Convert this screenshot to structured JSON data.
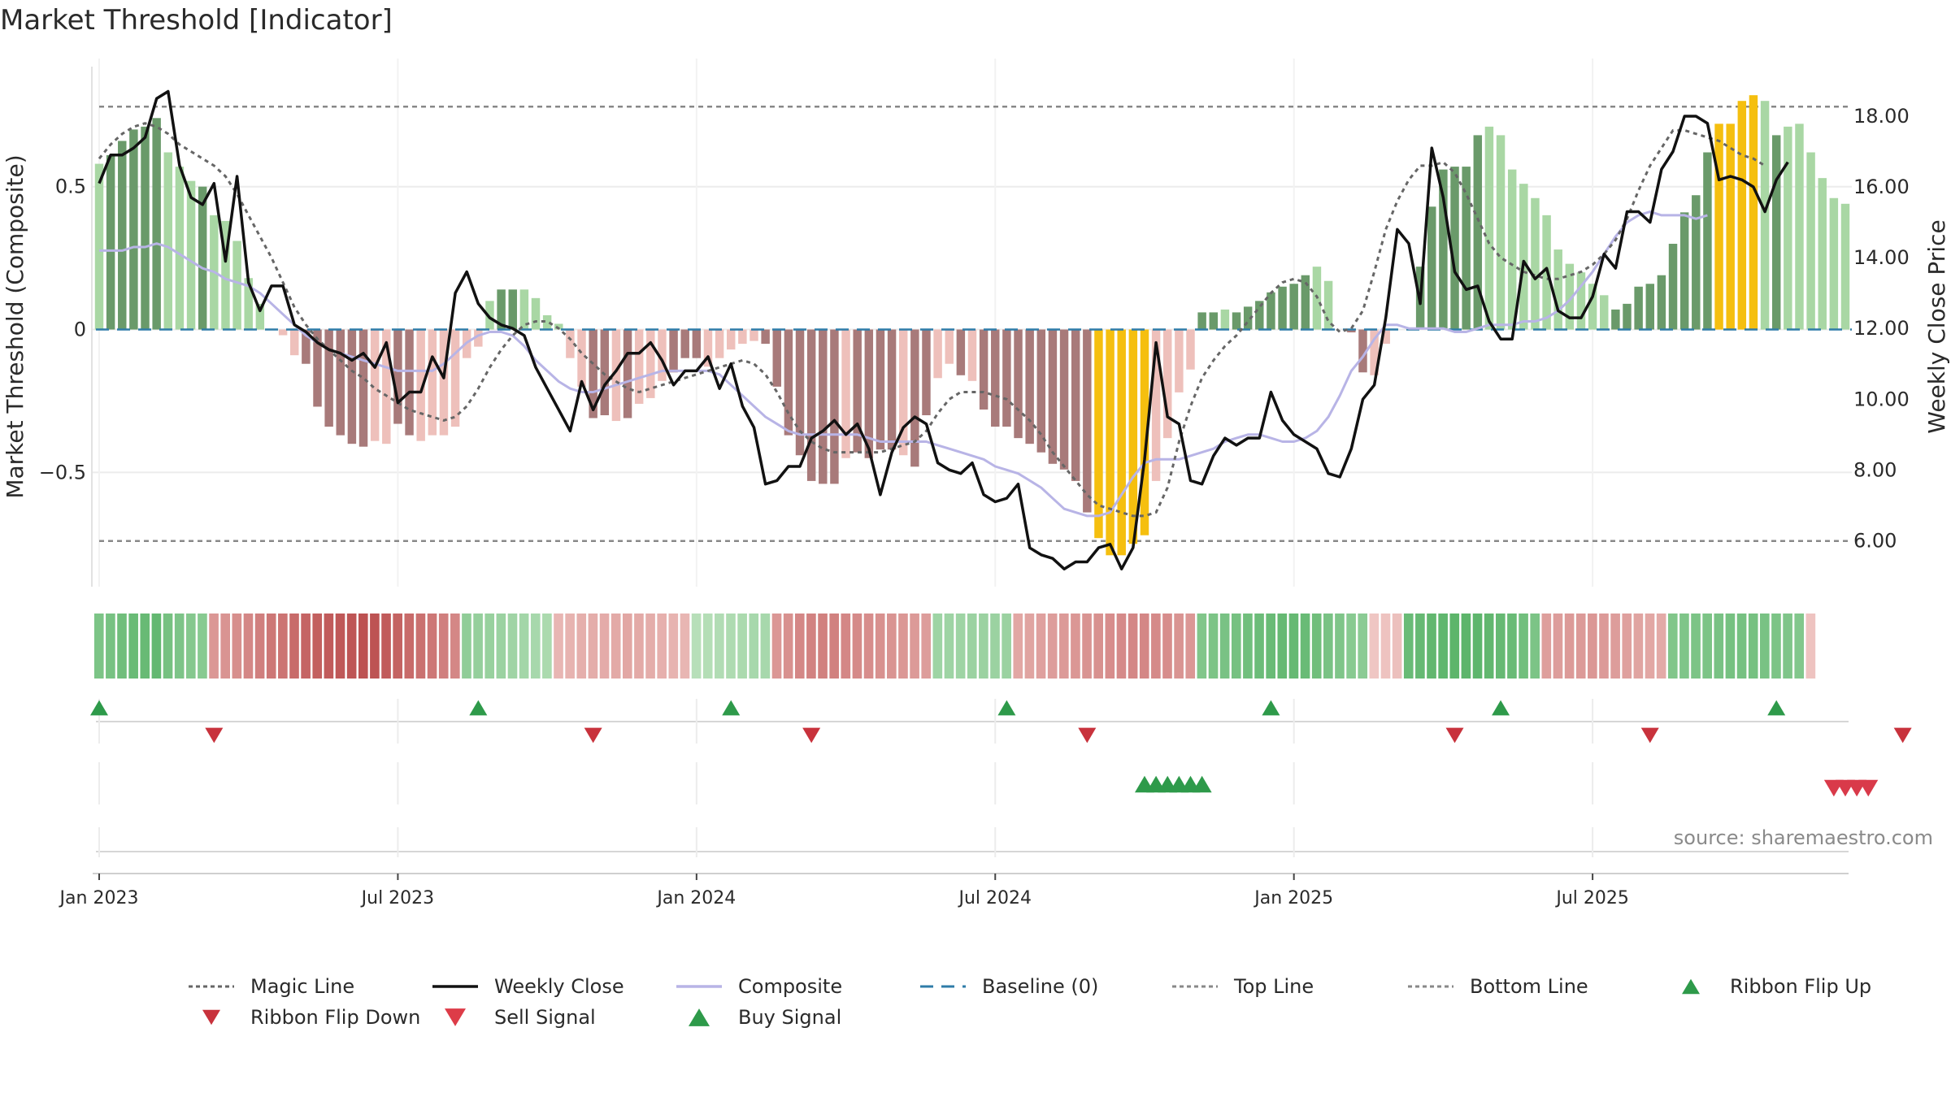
{
  "chart_data": {
    "title": "Market Threshold [Indicator]",
    "source": "source: sharemaestro.com",
    "type": "bar",
    "left_axis": {
      "label": "Market Threshold (Composite)",
      "range": [
        -0.9,
        0.92
      ],
      "ticks": [
        {
          "v": 0.5,
          "label": "0.5"
        },
        {
          "v": 0,
          "label": "0"
        },
        {
          "v": -0.5,
          "label": "−0.5"
        }
      ]
    },
    "right_axis": {
      "label": "Weekly Close Price",
      "range": [
        4.7,
        19.4
      ],
      "ticks": [
        {
          "v": 18,
          "label": "18.00"
        },
        {
          "v": 16,
          "label": "16.00"
        },
        {
          "v": 14,
          "label": "14.00"
        },
        {
          "v": 12,
          "label": "12.00"
        },
        {
          "v": 10,
          "label": "10.00"
        },
        {
          "v": 8,
          "label": "8.00"
        },
        {
          "v": 6,
          "label": "6.00"
        }
      ]
    },
    "x_axis": {
      "ticks": [
        "Jan 2023",
        "Jul 2023",
        "Jan 2024",
        "Jul 2024",
        "Jan 2025",
        "Jul 2025"
      ],
      "tick_weeks": [
        1,
        27,
        53,
        79,
        105,
        131
      ]
    },
    "top_line": 0.78,
    "bottom_line": -0.74,
    "grid": true,
    "legend_placement": "bottom",
    "colors": {
      "strong_pos": "#6a9a6a",
      "weak_pos": "#a9d7a4",
      "strong_neg": "#a87a7a",
      "weak_neg": "#eec0bb",
      "extreme": "#f5bf0f",
      "close": "#111111",
      "magic": "#666666",
      "composite": "#b8b4e6",
      "baseline": "#2f7ca8",
      "refline": "#888888",
      "buy": "#2e9a4a",
      "sell": "#d93a4a"
    },
    "composite_bars": [
      0.58,
      0.61,
      0.66,
      0.7,
      0.71,
      0.74,
      0.62,
      0.57,
      0.52,
      0.5,
      0.4,
      0.38,
      0.31,
      0.18,
      0.09,
      0.0,
      -0.02,
      -0.09,
      -0.12,
      -0.27,
      -0.34,
      -0.37,
      -0.4,
      -0.41,
      -0.39,
      -0.4,
      -0.33,
      -0.37,
      -0.39,
      -0.37,
      -0.37,
      -0.34,
      -0.1,
      -0.06,
      0.1,
      0.14,
      0.14,
      0.14,
      0.11,
      0.05,
      0.02,
      -0.1,
      -0.2,
      -0.31,
      -0.3,
      -0.32,
      -0.31,
      -0.26,
      -0.24,
      -0.18,
      -0.15,
      -0.1,
      -0.1,
      -0.13,
      -0.1,
      -0.07,
      -0.05,
      -0.04,
      -0.05,
      -0.2,
      -0.37,
      -0.44,
      -0.53,
      -0.54,
      -0.54,
      -0.45,
      -0.43,
      -0.45,
      -0.42,
      -0.42,
      -0.44,
      -0.48,
      -0.3,
      -0.17,
      -0.12,
      -0.16,
      -0.18,
      -0.28,
      -0.34,
      -0.34,
      -0.38,
      -0.4,
      -0.43,
      -0.47,
      -0.49,
      -0.53,
      -0.64,
      -0.73,
      -0.79,
      -0.79,
      -0.75,
      -0.72,
      -0.53,
      -0.38,
      -0.22,
      -0.14,
      0.06,
      0.06,
      0.07,
      0.06,
      0.08,
      0.1,
      0.13,
      0.15,
      0.16,
      0.19,
      0.22,
      0.17,
      0.0,
      -0.01,
      -0.15,
      -0.16,
      -0.05,
      0.0,
      0.0,
      0.22,
      0.43,
      0.56,
      0.57,
      0.57,
      0.68,
      0.71,
      0.68,
      0.56,
      0.51,
      0.46,
      0.4,
      0.28,
      0.23,
      0.2,
      0.16,
      0.12,
      0.07,
      0.09,
      0.15,
      0.16,
      0.19,
      0.3,
      0.41,
      0.47,
      0.62,
      0.72,
      0.72,
      0.8,
      0.82,
      0.8,
      0.68,
      0.71,
      0.72,
      0.62,
      0.53,
      0.46,
      0.44
    ],
    "bar_classes": [
      "W",
      "S",
      "S",
      "S",
      "S",
      "S",
      "W",
      "W",
      "W",
      "S",
      "W",
      "W",
      "W",
      "W",
      "W",
      "N",
      "N",
      "W",
      "S",
      "S",
      "S",
      "S",
      "S",
      "S",
      "W",
      "W",
      "S",
      "S",
      "W",
      "W",
      "W",
      "W",
      "W",
      "W",
      "W",
      "S",
      "S",
      "W",
      "W",
      "W",
      "W",
      "W",
      "W",
      "S",
      "S",
      "W",
      "S",
      "W",
      "W",
      "W",
      "S",
      "S",
      "S",
      "W",
      "W",
      "W",
      "W",
      "W",
      "S",
      "S",
      "S",
      "S",
      "S",
      "S",
      "S",
      "W",
      "S",
      "S",
      "S",
      "S",
      "W",
      "S",
      "S",
      "W",
      "W",
      "S",
      "W",
      "S",
      "S",
      "S",
      "S",
      "S",
      "S",
      "S",
      "S",
      "S",
      "S",
      "X",
      "X",
      "X",
      "X",
      "X",
      "W",
      "W",
      "W",
      "W",
      "S",
      "S",
      "W",
      "S",
      "S",
      "S",
      "S",
      "S",
      "S",
      "S",
      "W",
      "N",
      "W",
      "S",
      "S",
      "W",
      "N",
      "N",
      "W",
      "S",
      "S",
      "S",
      "S",
      "S",
      "S",
      "W",
      "W",
      "W",
      "W",
      "W",
      "W",
      "W",
      "W",
      "W",
      "W",
      "W",
      "S",
      "S",
      "S",
      "S",
      "S",
      "S",
      "S",
      "S",
      "S",
      "X",
      "X",
      "X",
      "X",
      "W",
      "S",
      "W",
      "W",
      "W",
      "W"
    ],
    "weekly_close": [
      16.1,
      16.9,
      16.9,
      17.1,
      17.4,
      18.5,
      18.7,
      16.6,
      15.7,
      15.5,
      16.1,
      13.9,
      16.3,
      13.3,
      12.5,
      13.2,
      13.2,
      12.1,
      11.9,
      11.6,
      11.4,
      11.3,
      11.1,
      11.3,
      10.9,
      11.6,
      9.9,
      10.2,
      10.2,
      11.2,
      10.6,
      13.0,
      13.6,
      12.7,
      12.3,
      12.1,
      12.0,
      11.8,
      10.9,
      10.3,
      9.7,
      9.1,
      10.5,
      9.7,
      10.4,
      10.8,
      11.3,
      11.3,
      11.6,
      11.1,
      10.4,
      10.8,
      10.8,
      11.2,
      10.3,
      11.0,
      9.8,
      9.2,
      7.6,
      7.7,
      8.1,
      8.1,
      8.9,
      9.1,
      9.4,
      9.0,
      9.3,
      8.6,
      7.3,
      8.5,
      9.2,
      9.5,
      9.3,
      8.2,
      8.0,
      7.9,
      8.2,
      7.3,
      7.1,
      7.2,
      7.6,
      5.8,
      5.6,
      5.5,
      5.2,
      5.4,
      5.4,
      5.8,
      5.9,
      5.2,
      5.8,
      8.3,
      11.6,
      9.5,
      9.3,
      7.7,
      7.6,
      8.4,
      8.9,
      8.7,
      8.9,
      8.9,
      10.2,
      9.4,
      9.0,
      8.8,
      8.6,
      7.9,
      7.8,
      8.6,
      10.0,
      10.4,
      12.3,
      14.8,
      14.4,
      12.7,
      17.1,
      15.7,
      13.6,
      13.1,
      13.2,
      12.2,
      11.7,
      11.7,
      13.9,
      13.4,
      13.7,
      12.5,
      12.3,
      12.3,
      12.9,
      14.1,
      13.7,
      15.3,
      15.3,
      15.0,
      16.5,
      17.0,
      18.0,
      18.0,
      17.8,
      16.2,
      16.3,
      16.2,
      16.0,
      15.3,
      16.2,
      16.7
    ],
    "magic_line": [
      16.8,
      17.2,
      17.5,
      17.7,
      17.8,
      17.7,
      17.5,
      17.2,
      17.0,
      16.8,
      16.6,
      16.3,
      15.8,
      15.2,
      14.6,
      14.0,
      13.3,
      12.6,
      12.1,
      11.7,
      11.4,
      11.1,
      10.8,
      10.6,
      10.3,
      10.1,
      9.9,
      9.7,
      9.6,
      9.5,
      9.4,
      9.5,
      9.8,
      10.3,
      10.9,
      11.4,
      11.8,
      12.1,
      12.2,
      12.2,
      12.0,
      11.7,
      11.3,
      11.0,
      10.7,
      10.5,
      10.3,
      10.2,
      10.3,
      10.4,
      10.5,
      10.6,
      10.7,
      10.8,
      10.9,
      11.0,
      11.1,
      11.0,
      10.7,
      10.2,
      9.6,
      9.1,
      8.8,
      8.6,
      8.5,
      8.5,
      8.5,
      8.5,
      8.5,
      8.6,
      8.7,
      8.8,
      9.1,
      9.6,
      10.0,
      10.2,
      10.2,
      10.2,
      10.1,
      10.0,
      9.7,
      9.4,
      9.0,
      8.5,
      8.1,
      7.7,
      7.3,
      7.0,
      6.9,
      6.8,
      6.7,
      6.7,
      6.8,
      7.5,
      8.8,
      9.8,
      10.6,
      11.1,
      11.5,
      11.8,
      12.2,
      12.6,
      13.0,
      13.3,
      13.4,
      13.3,
      12.9,
      12.2,
      11.9,
      12.0,
      12.5,
      13.6,
      14.8,
      15.6,
      16.2,
      16.6,
      16.6,
      16.7,
      16.4,
      15.8,
      15.1,
      14.4,
      14.0,
      13.8,
      13.6,
      13.5,
      13.4,
      13.4,
      13.5,
      13.6,
      13.8,
      14.1,
      14.5,
      15.1,
      15.9,
      16.6,
      17.1,
      17.6,
      17.6,
      17.5,
      17.4,
      17.3,
      17.1,
      16.9,
      16.8,
      16.6
    ],
    "composite_line": [
      14.2,
      14.2,
      14.2,
      14.3,
      14.3,
      14.4,
      14.3,
      14.1,
      13.9,
      13.7,
      13.6,
      13.4,
      13.3,
      13.2,
      13.0,
      12.7,
      12.4,
      12.1,
      11.8,
      11.6,
      11.4,
      11.3,
      11.2,
      11.1,
      11.0,
      10.9,
      10.8,
      10.8,
      10.8,
      10.8,
      11.0,
      11.3,
      11.6,
      11.8,
      11.9,
      11.9,
      11.8,
      11.5,
      11.1,
      10.8,
      10.5,
      10.3,
      10.2,
      10.2,
      10.3,
      10.4,
      10.5,
      10.6,
      10.7,
      10.8,
      10.8,
      10.8,
      10.8,
      10.8,
      10.7,
      10.4,
      10.1,
      9.8,
      9.5,
      9.3,
      9.1,
      9.0,
      9.0,
      9.0,
      9.0,
      9.0,
      9.0,
      8.9,
      8.8,
      8.8,
      8.8,
      8.8,
      8.8,
      8.7,
      8.6,
      8.5,
      8.4,
      8.3,
      8.1,
      8.0,
      7.9,
      7.7,
      7.5,
      7.2,
      6.9,
      6.8,
      6.7,
      6.7,
      6.8,
      7.3,
      7.8,
      8.2,
      8.3,
      8.3,
      8.3,
      8.4,
      8.5,
      8.6,
      8.8,
      8.9,
      9.0,
      9.0,
      8.9,
      8.8,
      8.8,
      8.9,
      9.1,
      9.5,
      10.1,
      10.8,
      11.2,
      11.7,
      12.1,
      12.1,
      12.0,
      12.0,
      12.0,
      12.0,
      11.9,
      11.9,
      12.0,
      12.1,
      12.1,
      12.1,
      12.2,
      12.2,
      12.3,
      12.5,
      12.8,
      13.2,
      13.6,
      14.1,
      14.6,
      15.0,
      15.2,
      15.3,
      15.2,
      15.2,
      15.2,
      15.1,
      15.2
    ],
    "ribbon_values": [
      0.58,
      0.61,
      0.66,
      0.7,
      0.71,
      0.74,
      0.62,
      0.57,
      0.52,
      0.5,
      -0.4,
      -0.42,
      -0.45,
      -0.5,
      -0.55,
      -0.6,
      -0.62,
      -0.68,
      -0.72,
      -0.75,
      -0.78,
      -0.8,
      -0.82,
      -0.84,
      -0.83,
      -0.78,
      -0.73,
      -0.68,
      -0.64,
      -0.6,
      -0.55,
      -0.5,
      0.45,
      0.42,
      0.4,
      0.38,
      0.35,
      0.33,
      0.3,
      0.28,
      -0.2,
      -0.22,
      -0.25,
      -0.26,
      -0.27,
      -0.28,
      -0.3,
      -0.28,
      -0.26,
      -0.24,
      -0.22,
      -0.2,
      0.2,
      0.22,
      0.24,
      0.26,
      0.28,
      0.3,
      0.3,
      -0.4,
      -0.44,
      -0.5,
      -0.53,
      -0.54,
      -0.54,
      -0.5,
      -0.48,
      -0.46,
      -0.44,
      -0.42,
      -0.4,
      -0.38,
      -0.36,
      0.36,
      0.36,
      0.36,
      0.38,
      0.38,
      0.38,
      0.38,
      -0.3,
      -0.32,
      -0.34,
      -0.36,
      -0.38,
      -0.4,
      -0.42,
      -0.44,
      -0.46,
      -0.48,
      -0.5,
      -0.5,
      -0.48,
      -0.46,
      -0.42,
      -0.4,
      0.55,
      0.58,
      0.6,
      0.62,
      0.65,
      0.68,
      0.7,
      0.72,
      0.72,
      0.7,
      0.66,
      0.6,
      0.56,
      0.5,
      0.48,
      -0.1,
      -0.12,
      -0.14,
      0.7,
      0.72,
      0.75,
      0.76,
      0.78,
      0.78,
      0.77,
      0.75,
      0.72,
      0.7,
      0.65,
      0.58,
      -0.35,
      -0.36,
      -0.38,
      -0.38,
      -0.4,
      -0.38,
      -0.36,
      -0.34,
      -0.32,
      -0.3,
      -0.28,
      0.55,
      0.56,
      0.58,
      0.58,
      0.6,
      0.62,
      0.62,
      0.62,
      0.6,
      0.58,
      0.56,
      0.54,
      -0.12
    ],
    "ribbon_flip_up": [
      1,
      34,
      56,
      80,
      103,
      123,
      147
    ],
    "ribbon_flip_down": [
      11,
      44,
      63,
      87,
      119,
      136,
      158
    ],
    "buy_signals": [
      92,
      93,
      94,
      95,
      96,
      97
    ],
    "sell_signals": [
      152,
      153,
      154,
      155
    ]
  },
  "legend": {
    "items": [
      {
        "label": "Magic Line",
        "kind": "dotted",
        "color": "#666666"
      },
      {
        "label": "Weekly Close",
        "kind": "solid",
        "color": "#111111"
      },
      {
        "label": "Composite",
        "kind": "solid",
        "color": "#b8b4e6"
      },
      {
        "label": "Baseline (0)",
        "kind": "dashed",
        "color": "#2f7ca8"
      },
      {
        "label": "Top Line",
        "kind": "dotted",
        "color": "#888888"
      },
      {
        "label": "Bottom Line",
        "kind": "dotted",
        "color": "#888888"
      },
      {
        "label": "Ribbon Flip Up",
        "kind": "tri-up",
        "color": "#2e9a4a"
      },
      {
        "label": "Ribbon Flip Down",
        "kind": "tri-down",
        "color": "#c8323c"
      },
      {
        "label": "Sell Signal",
        "kind": "tri-down-big",
        "color": "#dd3c48"
      },
      {
        "label": "Buy Signal",
        "kind": "tri-up-big",
        "color": "#2e9a4a"
      }
    ]
  }
}
